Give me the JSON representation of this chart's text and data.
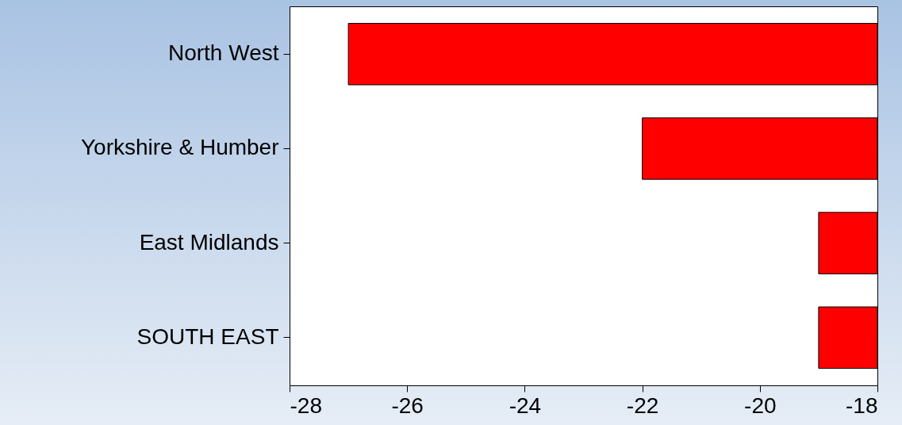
{
  "chart_data": {
    "type": "bar",
    "orientation": "horizontal",
    "categories": [
      "North West",
      "Yorkshire & Humber",
      "East Midlands",
      "SOUTH EAST"
    ],
    "values": [
      -27,
      -22,
      -19,
      -19
    ],
    "color": "#ff0000",
    "xlim": [
      -28,
      -18
    ],
    "xticks": [
      -28,
      -26,
      -24,
      -22,
      -20,
      -18
    ],
    "grid": false
  }
}
